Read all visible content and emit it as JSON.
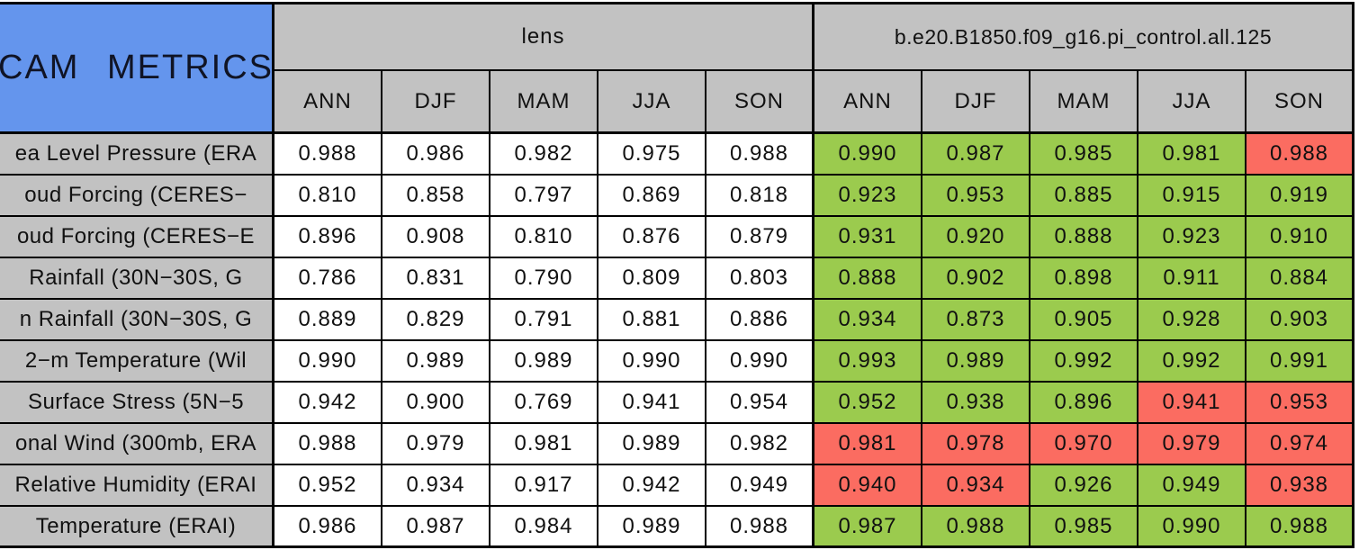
{
  "chart_data": {
    "type": "table",
    "title": "CAM METRICS",
    "column_groups": [
      "lens",
      "b.e20.B1850.f09_g16.pi_control.all.125"
    ],
    "seasons": [
      "ANN",
      "DJF",
      "MAM",
      "JJA",
      "SON"
    ],
    "colors": {
      "blue": "#6495ED",
      "gray": "#C2C2C2",
      "green": "#9BCB4E",
      "red": "#FB6C61",
      "border": "#000000"
    },
    "rows": [
      {
        "metric": "ea Level Pressure (ERA",
        "lens": [
          "0.988",
          "0.986",
          "0.982",
          "0.975",
          "0.988"
        ],
        "control": [
          "0.990",
          "0.987",
          "0.985",
          "0.981",
          "0.988"
        ],
        "control_colors": [
          "green",
          "green",
          "green",
          "green",
          "red"
        ]
      },
      {
        "metric": "oud Forcing (CERES−",
        "lens": [
          "0.810",
          "0.858",
          "0.797",
          "0.869",
          "0.818"
        ],
        "control": [
          "0.923",
          "0.953",
          "0.885",
          "0.915",
          "0.919"
        ],
        "control_colors": [
          "green",
          "green",
          "green",
          "green",
          "green"
        ]
      },
      {
        "metric": "oud Forcing (CERES−E",
        "lens": [
          "0.896",
          "0.908",
          "0.810",
          "0.876",
          "0.879"
        ],
        "control": [
          "0.931",
          "0.920",
          "0.888",
          "0.923",
          "0.910"
        ],
        "control_colors": [
          "green",
          "green",
          "green",
          "green",
          "green"
        ]
      },
      {
        "metric": "Rainfall (30N−30S, G",
        "lens": [
          "0.786",
          "0.831",
          "0.790",
          "0.809",
          "0.803"
        ],
        "control": [
          "0.888",
          "0.902",
          "0.898",
          "0.911",
          "0.884"
        ],
        "control_colors": [
          "green",
          "green",
          "green",
          "green",
          "green"
        ]
      },
      {
        "metric": "n Rainfall (30N−30S, G",
        "lens": [
          "0.889",
          "0.829",
          "0.791",
          "0.881",
          "0.886"
        ],
        "control": [
          "0.934",
          "0.873",
          "0.905",
          "0.928",
          "0.903"
        ],
        "control_colors": [
          "green",
          "green",
          "green",
          "green",
          "green"
        ]
      },
      {
        "metric": "2−m Temperature (Wil",
        "lens": [
          "0.990",
          "0.989",
          "0.989",
          "0.990",
          "0.990"
        ],
        "control": [
          "0.993",
          "0.989",
          "0.992",
          "0.992",
          "0.991"
        ],
        "control_colors": [
          "green",
          "green",
          "green",
          "green",
          "green"
        ]
      },
      {
        "metric": "Surface Stress (5N−5",
        "lens": [
          "0.942",
          "0.900",
          "0.769",
          "0.941",
          "0.954"
        ],
        "control": [
          "0.952",
          "0.938",
          "0.896",
          "0.941",
          "0.953"
        ],
        "control_colors": [
          "green",
          "green",
          "green",
          "red",
          "red"
        ]
      },
      {
        "metric": "onal Wind (300mb, ERA",
        "lens": [
          "0.988",
          "0.979",
          "0.981",
          "0.989",
          "0.982"
        ],
        "control": [
          "0.981",
          "0.978",
          "0.970",
          "0.979",
          "0.974"
        ],
        "control_colors": [
          "red",
          "red",
          "red",
          "red",
          "red"
        ]
      },
      {
        "metric": "Relative Humidity (ERAI",
        "lens": [
          "0.952",
          "0.934",
          "0.917",
          "0.942",
          "0.949"
        ],
        "control": [
          "0.940",
          "0.934",
          "0.926",
          "0.949",
          "0.938"
        ],
        "control_colors": [
          "red",
          "red",
          "green",
          "green",
          "red"
        ]
      },
      {
        "metric": "Temperature (ERAI)",
        "lens": [
          "0.986",
          "0.987",
          "0.984",
          "0.989",
          "0.988"
        ],
        "control": [
          "0.987",
          "0.988",
          "0.985",
          "0.990",
          "0.988"
        ],
        "control_colors": [
          "green",
          "green",
          "green",
          "green",
          "green"
        ]
      }
    ]
  }
}
